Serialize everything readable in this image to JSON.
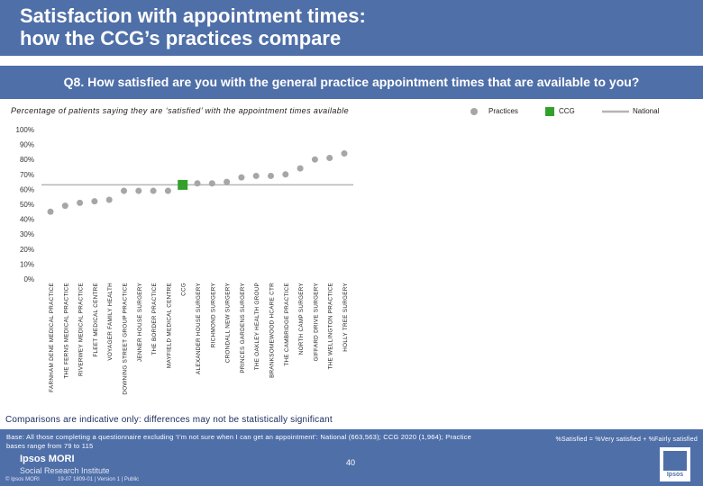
{
  "header": {
    "title": "Satisfaction with appointment times:\nhow the CCG’s practices compare"
  },
  "question": "Q8. How satisfied are you with the general practice appointment times that are available to you?",
  "subtitle": "Percentage of patients saying they are ‘satisfied’ with the appointment times available",
  "legend": {
    "practices": "Practices",
    "ccg": "CCG",
    "national": "National"
  },
  "colors": {
    "brand": "#4f6fa8",
    "practice": "#a6a6a6",
    "ccg": "#33a02c",
    "national": "#b5b5b5"
  },
  "chart_data": {
    "type": "scatter",
    "ylim": [
      0,
      100
    ],
    "yticks": [
      "0%",
      "10%",
      "20%",
      "30%",
      "40%",
      "50%",
      "60%",
      "70%",
      "80%",
      "90%",
      "100%"
    ],
    "national": 63,
    "categories": [
      "FARNHAM DENE MEDICAL PRACTICE",
      "THE FERNS MEDICAL PRACTICE",
      "RIVERWEY MEDICAL PRACTICE",
      "FLEET MEDICAL CENTRE",
      "VOYAGER FAMILY HEALTH",
      "DOWNING STREET GROUP PRACTICE",
      "JENNER HOUSE SURGERY",
      "THE BORDER PRACTICE",
      "MAYFIELD MEDICAL CENTRE",
      "CCG",
      "ALEXANDER HOUSE SURGERY",
      "RICHMOND SURGERY",
      "CRONDALL NEW SURGERY",
      "PRINCES GARDENS SURGERY",
      "THE OAKLEY HEALTH GROUP",
      "BRANKSOMEWOOD HCARE CTR",
      "THE CAMBRIDGE PRACTICE",
      "NORTH CAMP SURGERY",
      "GIFFARD DRIVE SURGERY",
      "THE WELLINGTON PRACTICE",
      "HOLLY TREE SURGERY"
    ],
    "values": [
      45,
      49,
      51,
      52,
      53,
      59,
      59,
      59,
      59,
      63,
      64,
      64,
      65,
      68,
      69,
      69,
      70,
      74,
      80,
      81,
      84
    ],
    "ccg_index": 9
  },
  "note": "Comparisons are indicative only: differences may not be statistically significant",
  "footer": {
    "base": "Base: All those completing a questionnaire excluding ‘I’m not sure when I can get an appointment’: National (663,563); CCG 2020 (1,964); Practice bases range from 79 to 115",
    "definition": "%Satisfied = %Very satisfied + %Fairly satisfied",
    "page_number": "40",
    "logo_main": "Ipsos MORI",
    "logo_sub": "Social Research Institute",
    "copyright": "© Ipsos MORI",
    "project": "19-07 1809-01 | Version 1 | Public",
    "badge": "Ipsos"
  }
}
